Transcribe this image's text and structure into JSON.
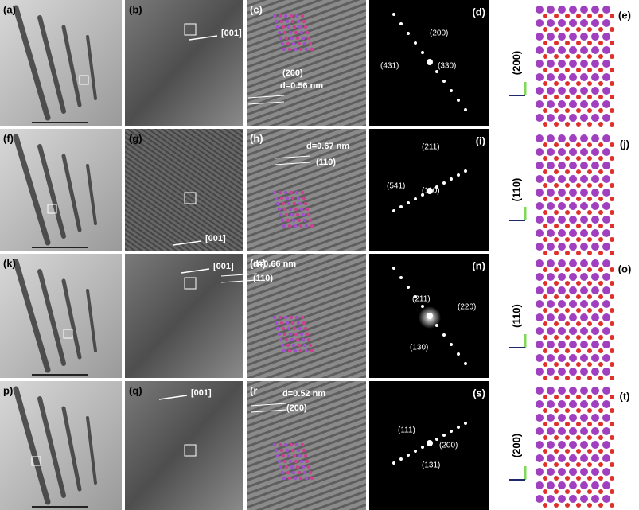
{
  "rows": [
    {
      "tem": {
        "label": "(a)"
      },
      "hrtem": {
        "label": "(b)",
        "direction": "[001]"
      },
      "fft": {
        "label": "(c)",
        "plane": "(200)",
        "spacing": "d=0.56 nm"
      },
      "saed": {
        "label": "(d)",
        "spots": [
          "(200)",
          "(330)",
          "(431)"
        ]
      },
      "structure": {
        "label": "(e)",
        "plane": "(200)"
      }
    },
    {
      "tem": {
        "label": "(f)"
      },
      "hrtem": {
        "label": "(g)",
        "direction": "[001]"
      },
      "fft": {
        "label": "(h)",
        "plane": "(110)",
        "spacing": "d=0.67 nm"
      },
      "saed": {
        "label": "(i)",
        "spots": [
          "(211)",
          "(541)",
          "(110)"
        ]
      },
      "structure": {
        "label": "(j)",
        "plane": "(110)"
      }
    },
    {
      "tem": {
        "label": "(k)"
      },
      "hrtem": {
        "direction": "[001]"
      },
      "fft": {
        "label": "(m)",
        "plane": "(110)",
        "spacing": "d=0.66 nm"
      },
      "saed": {
        "label": "(n)",
        "spots": [
          "(211)",
          "(220)",
          "(130)"
        ]
      },
      "structure": {
        "label": "(o)",
        "plane": "(110)"
      }
    },
    {
      "tem": {
        "label": "p)"
      },
      "hrtem": {
        "label": "(q)",
        "direction": "[001]"
      },
      "fft": {
        "label": "(r",
        "plane": "(200)",
        "spacing": "d=0.52 nm"
      },
      "saed": {
        "label": "(s)",
        "spots": [
          "(111)",
          "(200)",
          "(131)"
        ]
      },
      "structure": {
        "label": "(t)",
        "plane": "(200)"
      }
    }
  ]
}
